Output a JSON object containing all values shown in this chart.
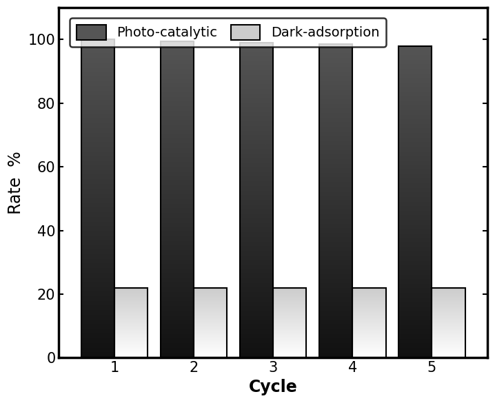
{
  "cycles": [
    1,
    2,
    3,
    4,
    5
  ],
  "photo_catalytic": [
    100,
    99.5,
    99,
    98.5,
    98
  ],
  "dark_adsorption": [
    22,
    22,
    22,
    22,
    22
  ],
  "photo_color": "#555555",
  "photo_color_dark": "#111111",
  "dark_color_top": "#cccccc",
  "dark_color_bottom": "#ffffff",
  "bar_edge_color": "#000000",
  "bar_width": 0.42,
  "bar_gap": 0.0,
  "xlabel": "Cycle",
  "ylabel": "Rate  %",
  "ylim": [
    0,
    110
  ],
  "yticks": [
    0,
    20,
    40,
    60,
    80,
    100
  ],
  "legend_photo": "Photo-catalytic",
  "legend_dark": "Dark-adsorption",
  "background_color": "#ffffff",
  "font_size_label": 17,
  "font_size_tick": 15,
  "font_size_legend": 14,
  "bar_linewidth": 1.5,
  "spine_linewidth": 2.5
}
